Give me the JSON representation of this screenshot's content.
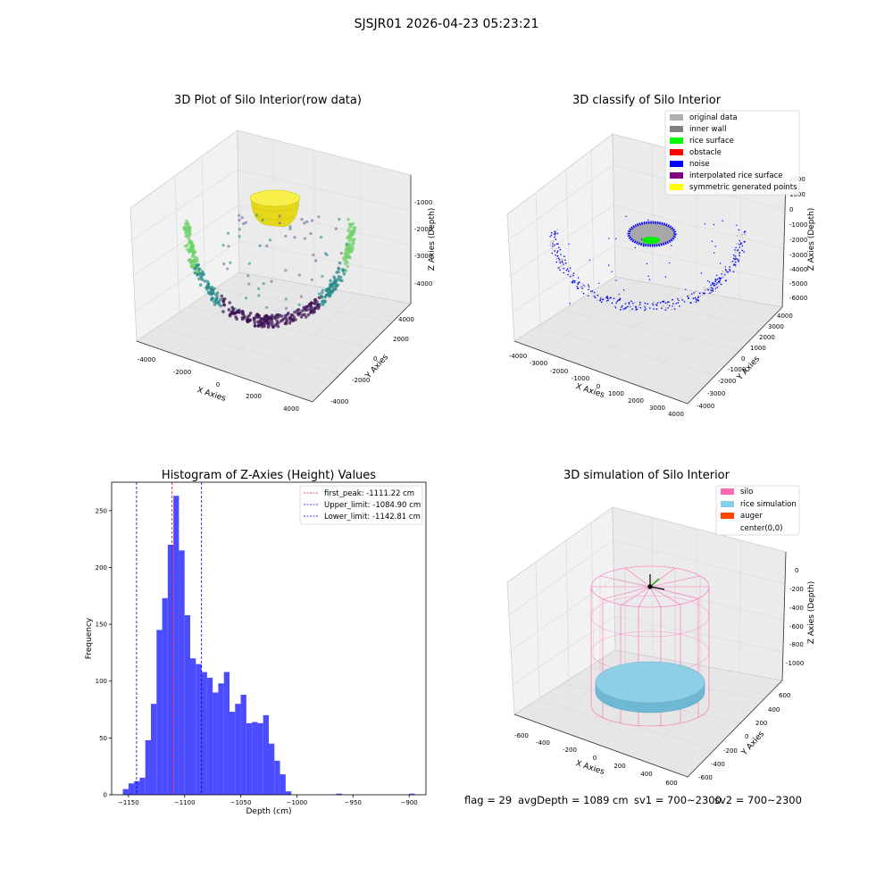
{
  "suptitle": "SJSJR01 2026-04-23 05:23:21",
  "footer": {
    "flag": "flag = 29",
    "avg_depth": "avgDepth = 1089 cm",
    "sv1": "sv1 = 700~2300",
    "sv2": "sv2 = 700~2300"
  },
  "colors": {
    "hist_bar": "#4c4cff",
    "first_peak": "#ff0000",
    "limit": "#0000cc",
    "silo": "#ff69b4",
    "rice": "#87cefa",
    "auger": "#ff4500",
    "scatter_low": "#3b0f54",
    "scatter_mid": "#2a8a8a",
    "scatter_high": "#6fd16b",
    "surface": "#f3ea1a"
  },
  "chart_data": [
    {
      "type": "scatter",
      "title": "3D Plot of Silo Interior(row data)",
      "xlabel": "X Axies",
      "ylabel": "Y Axies",
      "zlabel": "Z Axies (Depth)",
      "x_ticks": [
        "-4000",
        "-2000",
        "0",
        "2000",
        "4000"
      ],
      "y_ticks": [
        "-4000",
        "-2000",
        "0",
        "2000",
        "4000"
      ],
      "z_ticks": [
        "-1000",
        "-2000",
        "-3000",
        "-4000"
      ],
      "xlim": [
        -4500,
        4500
      ],
      "ylim": [
        -4500,
        4500
      ],
      "zlim": [
        -4800,
        -500
      ],
      "colormap": "viridis"
    },
    {
      "type": "scatter",
      "title": "3D classify of Silo Interior",
      "xlabel": "X Axies",
      "ylabel": "Y Axies",
      "zlabel": "Z Axies (Depth)",
      "x_ticks": [
        "-4000",
        "-3000",
        "-2000",
        "-1000",
        "0",
        "1000",
        "2000",
        "3000",
        "4000"
      ],
      "y_ticks": [
        "-4000",
        "-3000",
        "-2000",
        "-1000",
        "0",
        "1000",
        "2000",
        "3000",
        "4000"
      ],
      "z_ticks": [
        "2000",
        "1000",
        "0",
        "-1000",
        "-2000",
        "-3000",
        "-4000",
        "-5000",
        "-6000"
      ],
      "legend": [
        {
          "label": "original data",
          "color": "#b0b0b0"
        },
        {
          "label": "inner wall",
          "color": "#808080"
        },
        {
          "label": "rice surface",
          "color": "#00ff00"
        },
        {
          "label": "obstacle",
          "color": "#ff0000"
        },
        {
          "label": "noise",
          "color": "#0000ff"
        },
        {
          "label": "interpolated rice surface",
          "color": "#800080"
        },
        {
          "label": "symmetric generated points",
          "color": "#ffff00"
        }
      ],
      "legend_position": "top-right"
    },
    {
      "type": "bar",
      "title": "Histogram of Z-Axies (Height) Values",
      "xlabel": "Depth (cm)",
      "ylabel": "Frequency",
      "xlim": [
        -1165,
        -885
      ],
      "ylim": [
        0,
        275
      ],
      "x_ticks": [
        -1150,
        -1100,
        -1050,
        -1000,
        -950,
        -900
      ],
      "y_ticks": [
        0,
        50,
        100,
        150,
        200,
        250
      ],
      "bin_start": -1155,
      "bin_width": 5,
      "values": [
        5,
        10,
        12,
        15,
        48,
        80,
        145,
        173,
        220,
        263,
        215,
        158,
        120,
        115,
        108,
        103,
        90,
        98,
        108,
        73,
        80,
        88,
        63,
        64,
        63,
        70,
        45,
        30,
        18,
        3,
        0,
        0,
        0,
        0,
        0,
        0,
        0,
        0,
        1,
        0,
        0,
        0,
        0,
        0,
        0,
        0,
        0,
        0,
        0,
        0,
        0,
        1
      ],
      "lines": [
        {
          "label": "first_peak: -1111.22 cm",
          "x": -1111.22,
          "color": "#ff0000"
        },
        {
          "label": "Upper_limit: -1084.90 cm",
          "x": -1084.9,
          "color": "#0000cc"
        },
        {
          "label": "Lower_limit: -1142.81 cm",
          "x": -1142.81,
          "color": "#0000cc"
        }
      ],
      "legend_position": "top-right"
    },
    {
      "type": "scatter",
      "title": "3D simulation of Silo Interior",
      "xlabel": "X Axies",
      "ylabel": "Y Axies",
      "zlabel": "Z Axies (Depth)",
      "x_ticks": [
        "-600",
        "-400",
        "-200",
        "0",
        "200",
        "400",
        "600"
      ],
      "y_ticks": [
        "600",
        "400",
        "200",
        "0",
        "-200",
        "-400",
        "-600"
      ],
      "z_ticks": [
        "0",
        "-200",
        "-400",
        "-600",
        "-800",
        "-1000"
      ],
      "legend": [
        {
          "label": "silo",
          "color": "#ff69b4"
        },
        {
          "label": "rice simulation",
          "color": "#87ceeb"
        },
        {
          "label": "auger",
          "color": "#ff4500"
        },
        {
          "label": "center(0,0)",
          "color": ""
        }
      ],
      "legend_position": "top-right"
    }
  ]
}
